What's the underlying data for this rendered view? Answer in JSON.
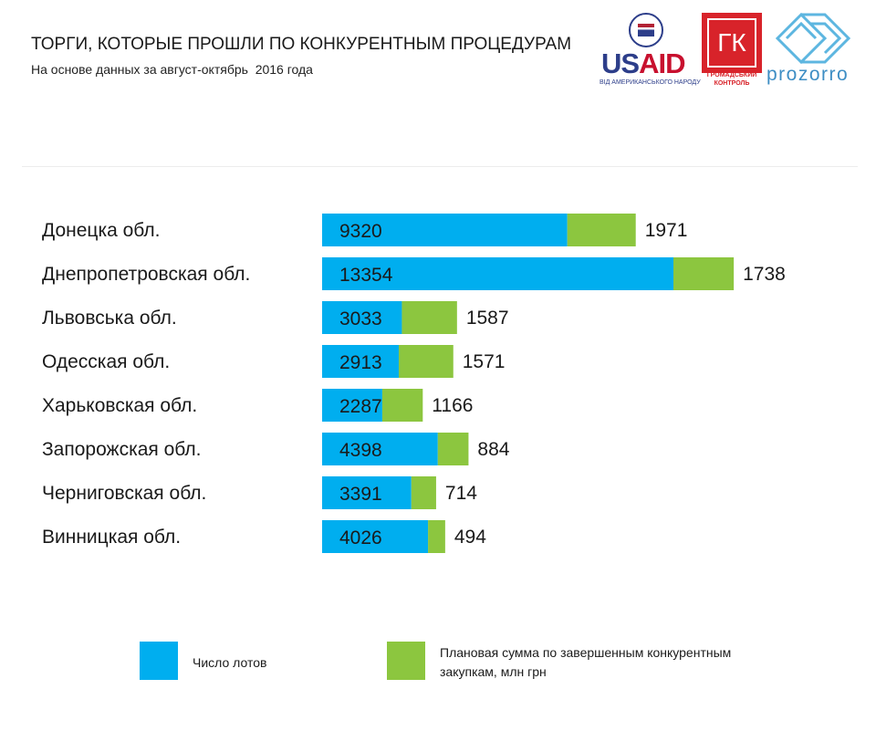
{
  "header": {
    "title": "ТОРГИ, КОТОРЫЕ ПРОШЛИ ПО КОНКУРЕНТНЫМ ПРОЦЕДУРАМ",
    "subtitle": "На основе данных за август-октябрь  2016 года"
  },
  "logos": {
    "usaid": {
      "word_us": "US",
      "word_aid": "AID",
      "tagline": "ВІД АМЕРИКАНСЬКОГО НАРОДУ"
    },
    "gk": {
      "letters": "ГК",
      "line1": "ГРОМАДСЬКИЙ",
      "line2": "КОНТРОЛЬ"
    },
    "prozorro": {
      "word": "prozorro"
    }
  },
  "colors": {
    "lots": "#00aeef",
    "sum": "#8cc63f"
  },
  "chart_data": {
    "type": "bar",
    "orientation": "horizontal",
    "stacked": true,
    "categories": [
      "Донецка обл.",
      "Днепропетровская обл.",
      "Львовська обл.",
      "Одесская обл.",
      "Харьковская обл.",
      "Запорожская обл.",
      "Черниговская обл.",
      "Винницкая обл."
    ],
    "series": [
      {
        "name": "Число лотов",
        "values": [
          9320,
          13354,
          3033,
          2913,
          2287,
          4398,
          3391,
          4026
        ]
      },
      {
        "name": "Плановая сумма по завершенным конкурентным закупкам, млн грн",
        "values": [
          1971,
          1738,
          1587,
          1571,
          1166,
          884,
          714,
          494
        ]
      }
    ],
    "legend": {
      "position": "bottom",
      "lots_label": "Число лотов",
      "sum_label_line1": "Плановая сумма по завершенным конкурентным",
      "sum_label_line2": "закупкам, млн грн"
    },
    "grid": false
  }
}
